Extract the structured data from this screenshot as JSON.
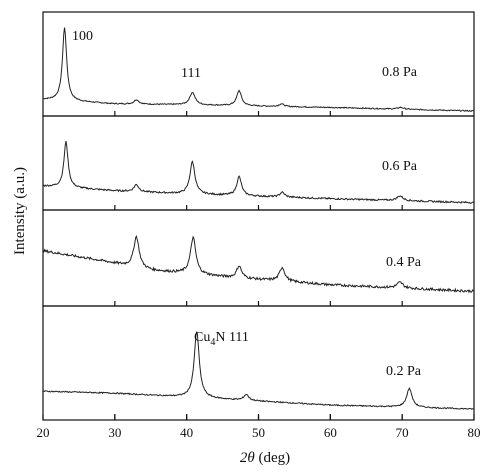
{
  "chart_data": {
    "type": "line",
    "xlabel_symbol": "2θ",
    "xlabel_unit": " (deg)",
    "ylabel": "Intensity (a.u.)",
    "xlim": [
      20,
      80
    ],
    "x_ticks": [
      "20",
      "30",
      "40",
      "50",
      "60",
      "70",
      "80"
    ],
    "ylim": [
      0,
      1
    ],
    "grid": false,
    "series": [
      {
        "name": "0.8 Pa",
        "baseline": [
          [
            20,
            0.13
          ],
          [
            30,
            0.08
          ],
          [
            40,
            0.07
          ],
          [
            60,
            0.04
          ],
          [
            80,
            0.0
          ]
        ],
        "peaks": [
          [
            23.0,
            0.82,
            0.35
          ],
          [
            33.0,
            0.05,
            0.4
          ],
          [
            40.8,
            0.14,
            0.45
          ],
          [
            47.3,
            0.17,
            0.4
          ],
          [
            53.2,
            0.03,
            0.4
          ],
          [
            69.8,
            0.02,
            0.5
          ]
        ],
        "noise": 0.006,
        "peak_labels": [
          {
            "text": "100",
            "x": 23.0
          },
          {
            "text": "111",
            "x": 40.8
          }
        ]
      },
      {
        "name": "0.6 Pa",
        "baseline": [
          [
            20,
            0.24
          ],
          [
            30,
            0.18
          ],
          [
            40,
            0.14
          ],
          [
            60,
            0.08
          ],
          [
            80,
            0.03
          ]
        ],
        "peaks": [
          [
            23.2,
            0.58,
            0.35
          ],
          [
            33.0,
            0.09,
            0.4
          ],
          [
            40.8,
            0.41,
            0.42
          ],
          [
            47.3,
            0.24,
            0.4
          ],
          [
            53.3,
            0.06,
            0.4
          ],
          [
            69.7,
            0.06,
            0.5
          ]
        ],
        "noise": 0.01
      },
      {
        "name": "0.4 Pa",
        "baseline": [
          [
            20,
            0.62
          ],
          [
            28,
            0.5
          ],
          [
            35,
            0.38
          ],
          [
            45,
            0.3
          ],
          [
            60,
            0.2
          ],
          [
            80,
            0.12
          ]
        ],
        "peaks": [
          [
            33.0,
            0.38,
            0.45
          ],
          [
            40.9,
            0.45,
            0.45
          ],
          [
            47.3,
            0.15,
            0.4
          ],
          [
            53.3,
            0.17,
            0.45
          ],
          [
            69.7,
            0.07,
            0.5
          ]
        ],
        "noise": 0.015
      },
      {
        "name": "0.2 Pa",
        "baseline": [
          [
            20,
            0.24
          ],
          [
            30,
            0.22
          ],
          [
            40,
            0.18
          ],
          [
            60,
            0.1
          ],
          [
            80,
            0.06
          ]
        ],
        "peaks": [
          [
            41.4,
            0.67,
            0.42
          ],
          [
            48.3,
            0.06,
            0.4
          ],
          [
            71.0,
            0.19,
            0.45
          ]
        ],
        "noise": 0.006,
        "peak_labels": [
          {
            "text": "Cu",
            "sub": "4",
            "tail": "N 111",
            "x": 41.4
          }
        ]
      }
    ]
  }
}
